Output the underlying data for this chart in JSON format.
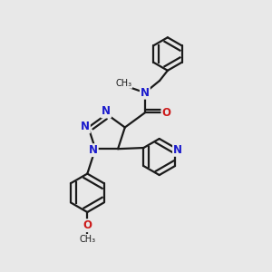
{
  "bg_color": "#e8e8e8",
  "bond_color": "#1a1a1a",
  "n_color": "#1a1acc",
  "o_color": "#cc1a1a",
  "line_width": 1.6,
  "font_size_atom": 8.5,
  "fig_size": [
    3.0,
    3.0
  ],
  "dpi": 100,
  "xlim": [
    0,
    10
  ],
  "ylim": [
    0,
    10
  ]
}
